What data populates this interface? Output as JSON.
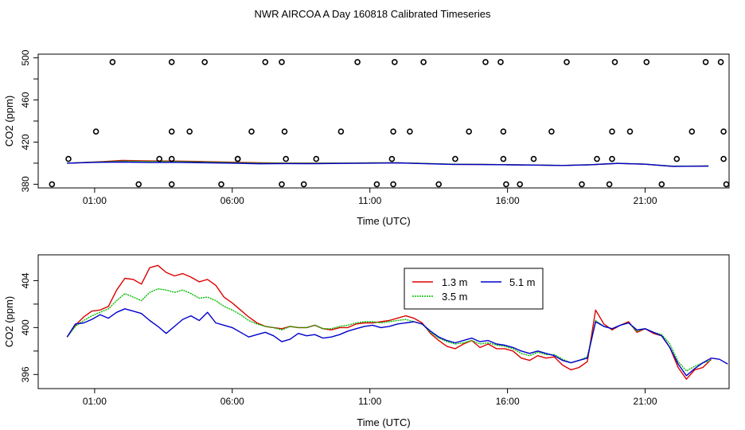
{
  "figure": {
    "title": "NWR AIRCOA A  Day 160818  Calibrated Timeseries"
  },
  "chart_data": [
    {
      "type": "line",
      "title": "",
      "xlabel": "Time (UTC)",
      "ylabel": "CO2 (ppm)",
      "xlim": [
        -1.05,
        24.05
      ],
      "ylim": [
        376.5,
        503.5
      ],
      "xticks": [
        1,
        6,
        11,
        16,
        21
      ],
      "xtick_labels": [
        "01:00",
        "06:00",
        "11:00",
        "16:00",
        "21:00"
      ],
      "yticks": [
        380,
        400,
        420,
        440,
        460,
        480,
        500
      ],
      "ytick_labels": [
        "380",
        "",
        "420",
        "",
        "460",
        "",
        "500"
      ],
      "baseline_series": [
        {
          "name": "1.3 m",
          "color": "#dd0000",
          "x": [
            0,
            1,
            2,
            3,
            4,
            5,
            6,
            7,
            8,
            9,
            10,
            11,
            12,
            13,
            14,
            15,
            16,
            17,
            18,
            19,
            20,
            21,
            22,
            23.3
          ],
          "y": [
            400.0,
            401.1,
            402.6,
            402.1,
            402.0,
            401.5,
            400.9,
            400.3,
            400.0,
            399.9,
            400.0,
            400.2,
            400.3,
            399.7,
            398.9,
            398.8,
            398.6,
            398.2,
            397.8,
            398.5,
            399.8,
            399.0,
            397.0,
            397.3
          ]
        },
        {
          "name": "3.5 m",
          "color": "#00aa00",
          "x": [
            0,
            1,
            2,
            3,
            4,
            5,
            6,
            7,
            8,
            9,
            10,
            11,
            12,
            13,
            14,
            15,
            16,
            17,
            18,
            19,
            20,
            21,
            22,
            23.3
          ],
          "y": [
            400.0,
            401.0,
            402.0,
            401.7,
            401.6,
            401.2,
            400.6,
            400.1,
            400.0,
            399.9,
            400.1,
            400.3,
            400.4,
            399.8,
            399.1,
            398.9,
            398.6,
            398.3,
            397.9,
            398.6,
            399.9,
            399.1,
            397.2,
            397.3
          ]
        },
        {
          "name": "5.1 m",
          "color": "#0000cc",
          "x": [
            0,
            1,
            2,
            3,
            4,
            5,
            6,
            7,
            8,
            9,
            10,
            11,
            12,
            13,
            14,
            15,
            16,
            17,
            18,
            19,
            20,
            21,
            22,
            23.3
          ],
          "y": [
            400.0,
            400.8,
            401.1,
            400.6,
            400.8,
            400.4,
            400.0,
            399.4,
            399.6,
            399.5,
            399.8,
            400.0,
            400.2,
            399.5,
            398.9,
            398.7,
            398.4,
            398.2,
            397.8,
            398.5,
            399.8,
            399.0,
            397.0,
            397.2
          ]
        }
      ],
      "scatter_series": [
        {
          "name": "standards",
          "marker": "open-circle",
          "x": [
            -0.55,
            0.05,
            1.05,
            1.65,
            2.6,
            3.35,
            3.8,
            3.8,
            3.8,
            3.8,
            4.45,
            5.0,
            5.6,
            6.2,
            6.2,
            6.7,
            7.2,
            7.8,
            7.8,
            7.9,
            7.95,
            8.6,
            9.05,
            9.95,
            10.55,
            11.25,
            11.8,
            11.85,
            11.85,
            11.9,
            12.45,
            12.95,
            13.5,
            14.1,
            14.6,
            15.2,
            15.75,
            15.85,
            15.85,
            15.95,
            16.45,
            16.95,
            17.6,
            18.15,
            18.7,
            19.25,
            19.7,
            19.8,
            19.8,
            19.9,
            20.45,
            21.05,
            21.6,
            22.15,
            22.7,
            23.2,
            23.75,
            23.85,
            23.85,
            23.95
          ],
          "y": [
            380,
            404,
            430,
            496,
            380,
            404,
            380,
            404,
            430,
            496,
            430,
            496,
            380,
            404,
            404,
            430,
            496,
            380,
            496,
            430,
            404,
            380,
            404,
            430,
            496,
            380,
            404,
            380,
            430,
            496,
            430,
            496,
            380,
            404,
            430,
            496,
            496,
            404,
            430,
            380,
            380,
            404,
            430,
            496,
            380,
            404,
            380,
            404,
            430,
            496,
            430,
            496,
            380,
            404,
            430,
            496,
            496,
            430,
            404,
            380
          ]
        }
      ]
    },
    {
      "type": "line",
      "title": "",
      "xlabel": "Time (UTC)",
      "ylabel": "CO2 (ppm)",
      "xlim": [
        -1.05,
        24.05
      ],
      "ylim": [
        394.8,
        406.2
      ],
      "xticks": [
        1,
        6,
        11,
        16,
        21
      ],
      "xtick_labels": [
        "01:00",
        "06:00",
        "11:00",
        "16:00",
        "21:00"
      ],
      "yticks": [
        396,
        398,
        400,
        402,
        404
      ],
      "ytick_labels": [
        "396",
        "",
        "400",
        "",
        "404"
      ],
      "legend": {
        "position": "top-center",
        "entries": [
          "1.3 m",
          "5.1 m",
          "3.5 m"
        ]
      },
      "series": [
        {
          "name": "1.3 m",
          "color": "#dd0000",
          "x": [
            0,
            0.3,
            0.6,
            0.9,
            1.2,
            1.5,
            1.8,
            2.1,
            2.4,
            2.7,
            3.0,
            3.3,
            3.6,
            3.9,
            4.2,
            4.5,
            4.8,
            5.1,
            5.4,
            5.7,
            6.0,
            6.3,
            6.6,
            6.9,
            7.2,
            7.5,
            7.8,
            8.1,
            8.4,
            8.7,
            9.0,
            9.3,
            9.6,
            9.9,
            10.2,
            10.5,
            10.8,
            11.1,
            11.4,
            11.7,
            12.0,
            12.3,
            12.6,
            12.9,
            13.2,
            13.5,
            13.8,
            14.1,
            14.4,
            14.7,
            15.0,
            15.3,
            15.6,
            15.9,
            16.2,
            16.5,
            16.8,
            17.1,
            17.4,
            17.7,
            18.0,
            18.3,
            18.6,
            18.9,
            19.2,
            19.5,
            19.8,
            20.1,
            20.4,
            20.7,
            21.0,
            21.3,
            21.6,
            21.9,
            22.2,
            22.5,
            22.8,
            23.1,
            23.4
          ],
          "y": [
            399.2,
            400.2,
            400.9,
            401.4,
            401.5,
            401.8,
            403.2,
            404.2,
            404.1,
            403.7,
            405.1,
            405.3,
            404.7,
            404.4,
            404.6,
            404.3,
            403.9,
            404.1,
            403.6,
            402.6,
            402.1,
            401.5,
            400.9,
            400.4,
            400.1,
            400.0,
            399.9,
            400.1,
            400.0,
            400.0,
            400.2,
            399.9,
            399.8,
            400.0,
            400.0,
            400.3,
            400.4,
            400.4,
            400.5,
            400.6,
            400.8,
            401.0,
            400.8,
            400.4,
            399.5,
            398.9,
            398.4,
            398.2,
            398.6,
            398.9,
            398.3,
            398.6,
            398.2,
            398.2,
            398.0,
            397.4,
            397.2,
            397.6,
            397.4,
            397.5,
            396.8,
            396.4,
            396.6,
            397.1,
            401.5,
            400.3,
            399.8,
            400.2,
            400.5,
            399.6,
            399.9,
            399.5,
            399.3,
            398.3,
            396.6,
            395.6,
            396.4,
            396.6,
            397.3
          ]
        },
        {
          "name": "3.5 m",
          "color": "#00bb00",
          "x": [
            0,
            0.3,
            0.6,
            0.9,
            1.2,
            1.5,
            1.8,
            2.1,
            2.4,
            2.7,
            3.0,
            3.3,
            3.6,
            3.9,
            4.2,
            4.5,
            4.8,
            5.1,
            5.4,
            5.7,
            6.0,
            6.3,
            6.6,
            6.9,
            7.2,
            7.5,
            7.8,
            8.1,
            8.4,
            8.7,
            9.0,
            9.3,
            9.6,
            9.9,
            10.2,
            10.5,
            10.8,
            11.1,
            11.4,
            11.7,
            12.0,
            12.3,
            12.6,
            12.9,
            13.2,
            13.5,
            13.8,
            14.1,
            14.4,
            14.7,
            15.0,
            15.3,
            15.6,
            15.9,
            16.2,
            16.5,
            16.8,
            17.1,
            17.4,
            17.7,
            18.0,
            18.3,
            18.6,
            18.9,
            19.2,
            19.5,
            19.8,
            20.1,
            20.4,
            20.7,
            21.0,
            21.3,
            21.6,
            21.9,
            22.2,
            22.5,
            22.8,
            23.1,
            23.4
          ],
          "y": [
            399.2,
            400.1,
            400.6,
            401.0,
            401.3,
            401.6,
            402.3,
            402.9,
            402.6,
            402.3,
            403.0,
            403.3,
            403.2,
            403.0,
            403.2,
            402.9,
            402.5,
            402.6,
            402.3,
            401.8,
            401.5,
            401.1,
            400.6,
            400.3,
            400.1,
            400.0,
            399.8,
            400.1,
            400.0,
            400.0,
            400.2,
            399.9,
            399.9,
            400.1,
            400.2,
            400.4,
            400.5,
            400.5,
            400.4,
            400.5,
            400.6,
            400.7,
            400.5,
            400.3,
            399.6,
            399.1,
            398.8,
            398.6,
            398.7,
            398.9,
            398.6,
            398.7,
            398.5,
            398.4,
            398.2,
            397.8,
            397.6,
            397.9,
            397.7,
            397.7,
            397.3,
            397.0,
            397.2,
            397.5,
            400.6,
            400.1,
            399.9,
            400.2,
            400.4,
            399.7,
            399.9,
            399.6,
            399.4,
            398.6,
            397.1,
            396.3,
            396.7,
            397.0,
            397.2
          ]
        },
        {
          "name": "5.1 m",
          "color": "#0000cc",
          "x": [
            0,
            0.3,
            0.6,
            0.9,
            1.2,
            1.5,
            1.8,
            2.1,
            2.4,
            2.7,
            3.0,
            3.3,
            3.6,
            3.9,
            4.2,
            4.5,
            4.8,
            5.1,
            5.4,
            5.7,
            6.0,
            6.3,
            6.6,
            6.9,
            7.2,
            7.5,
            7.8,
            8.1,
            8.4,
            8.7,
            9.0,
            9.3,
            9.6,
            9.9,
            10.2,
            10.5,
            10.8,
            11.1,
            11.4,
            11.7,
            12.0,
            12.3,
            12.6,
            12.9,
            13.2,
            13.5,
            13.8,
            14.1,
            14.4,
            14.7,
            15.0,
            15.3,
            15.6,
            15.9,
            16.2,
            16.5,
            16.8,
            17.1,
            17.4,
            17.7,
            18.0,
            18.3,
            18.6,
            18.9,
            19.2,
            19.5,
            19.8,
            20.1,
            20.4,
            20.7,
            21.0,
            21.3,
            21.6,
            21.9,
            22.2,
            22.5,
            22.8,
            23.1,
            23.4,
            23.7,
            24.0
          ],
          "y": [
            399.2,
            400.3,
            400.4,
            400.7,
            401.1,
            400.8,
            401.3,
            401.6,
            401.4,
            401.2,
            400.6,
            400.1,
            399.5,
            400.1,
            400.7,
            401.0,
            400.6,
            401.3,
            400.4,
            400.2,
            400.0,
            399.6,
            399.2,
            399.4,
            399.6,
            399.3,
            398.8,
            399.0,
            399.5,
            399.3,
            399.4,
            399.1,
            399.2,
            399.4,
            399.7,
            399.9,
            400.1,
            400.2,
            400.0,
            400.1,
            400.3,
            400.4,
            400.5,
            400.3,
            399.7,
            399.2,
            398.9,
            398.7,
            398.9,
            399.1,
            398.8,
            398.9,
            398.6,
            398.5,
            398.3,
            398.0,
            397.8,
            398.0,
            397.8,
            397.6,
            397.2,
            397.0,
            397.2,
            397.4,
            400.5,
            400.1,
            399.9,
            400.2,
            400.4,
            399.8,
            399.9,
            399.6,
            399.3,
            398.3,
            396.9,
            395.9,
            396.5,
            397.0,
            397.4,
            397.3,
            396.9
          ]
        }
      ]
    }
  ]
}
